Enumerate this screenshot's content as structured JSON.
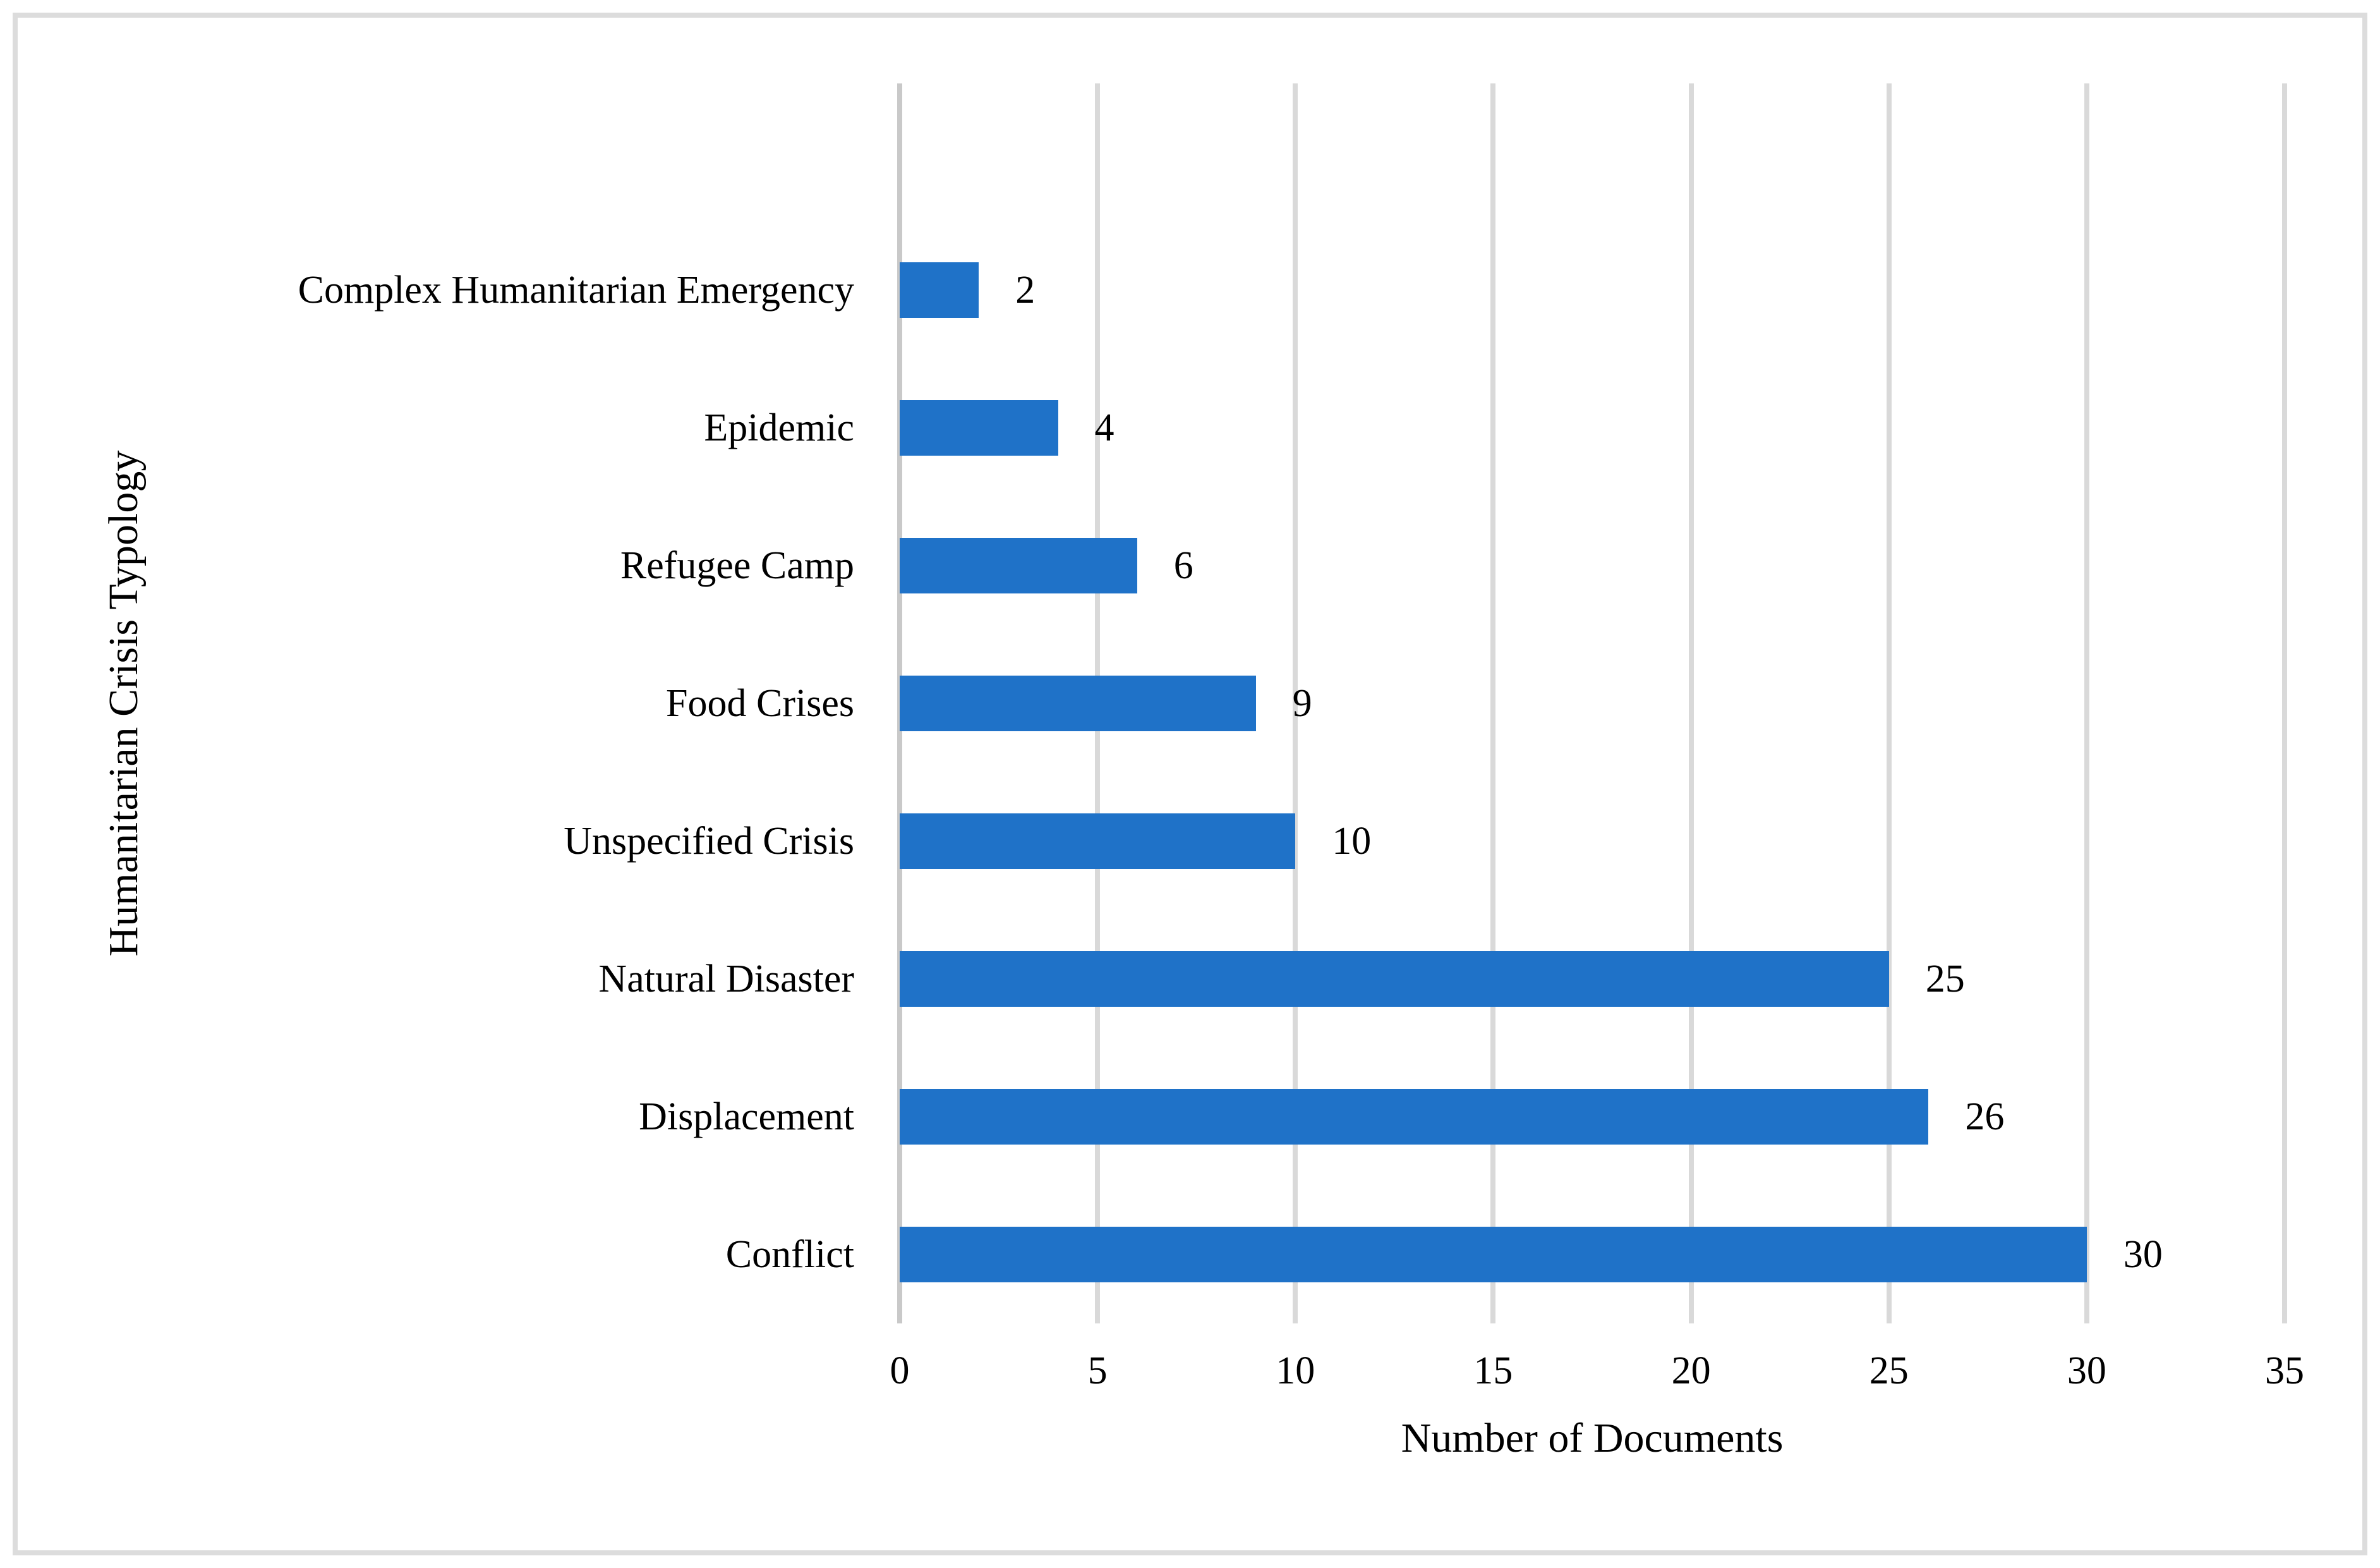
{
  "chart_data": {
    "type": "bar",
    "orientation": "horizontal",
    "title": "",
    "xlabel": "Number of Documents",
    "ylabel": "Humanitarian Crisis Typology",
    "categories": [
      "Complex Humanitarian Emergency",
      "Epidemic",
      "Refugee Camp",
      "Food Crises",
      "Unspecified Crisis",
      "Natural Disaster",
      "Displacement",
      "Conflict"
    ],
    "values": [
      2,
      4,
      6,
      9,
      10,
      25,
      26,
      30
    ],
    "data_labels": [
      "2",
      "4",
      "6",
      "9",
      "10",
      "25",
      "26",
      "30"
    ],
    "xlim": [
      0,
      35
    ],
    "xticks": [
      0,
      5,
      10,
      15,
      20,
      25,
      30,
      35
    ],
    "xtick_labels": [
      "0",
      "5",
      "10",
      "15",
      "20",
      "25",
      "30",
      "35"
    ],
    "grid": "vertical",
    "legend": "none",
    "colors": {
      "bar": "#1F72C8",
      "gridline": "#D9D9D9",
      "axis_line": "#C9C9C9",
      "text": "#000000",
      "figure_border": "#DCDCDC",
      "background": "#FFFFFF"
    }
  }
}
